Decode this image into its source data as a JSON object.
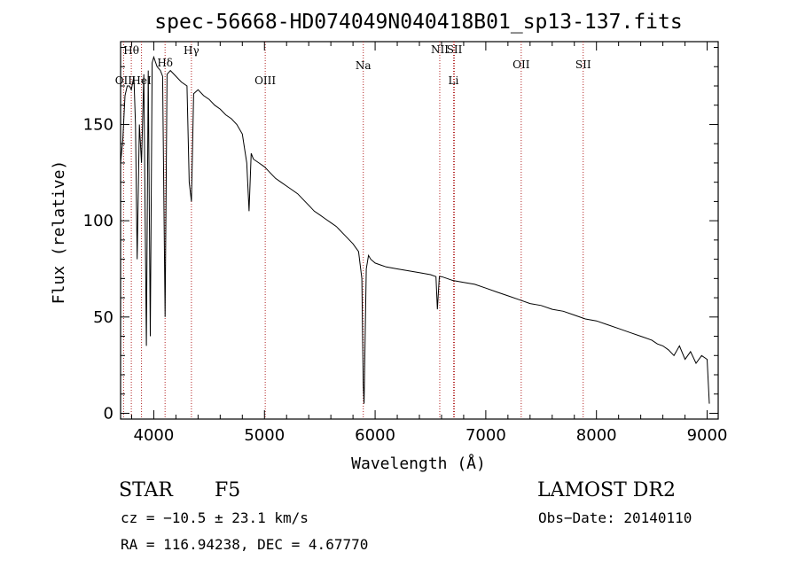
{
  "chart_data": {
    "type": "line",
    "title": "spec-56668-HD074049N040418B01_sp13-137.fits",
    "xlabel": "Wavelength (Å)",
    "ylabel": "Flux (relative)",
    "xlim": [
      3700,
      9100
    ],
    "ylim": [
      -3,
      193
    ],
    "xticks": [
      "4000",
      "5000",
      "6000",
      "7000",
      "8000",
      "9000"
    ],
    "yticks": [
      "0",
      "50",
      "100",
      "150"
    ],
    "grid": false,
    "line_markers": [
      {
        "label": "Hθ",
        "x": 3797
      },
      {
        "label": "OII",
        "x": 3727
      },
      {
        "label": "HeI",
        "x": 3889
      },
      {
        "label": "Hδ",
        "x": 4102
      },
      {
        "label": "Hγ",
        "x": 4340
      },
      {
        "label": "OIII",
        "x": 5007
      },
      {
        "label": "Na",
        "x": 5893
      },
      {
        "label": "NII",
        "x": 6584
      },
      {
        "label": "SII",
        "x": 6717
      },
      {
        "label": "Li",
        "x": 6708
      },
      {
        "label": "OII",
        "x": 7320
      },
      {
        "label": "SII",
        "x": 7880
      }
    ],
    "series": [
      {
        "x": [
          3700,
          3720,
          3740,
          3760,
          3780,
          3797,
          3820,
          3835,
          3850,
          3870,
          3889,
          3910,
          3933,
          3950,
          3968,
          3985,
          4000,
          4030,
          4060,
          4080,
          4102,
          4120,
          4150,
          4200,
          4250,
          4300,
          4320,
          4340,
          4360,
          4400,
          4450,
          4500,
          4550,
          4600,
          4650,
          4700,
          4750,
          4800,
          4840,
          4861,
          4880,
          4900,
          4950,
          5000,
          5050,
          5100,
          5150,
          5200,
          5250,
          5300,
          5350,
          5400,
          5450,
          5500,
          5550,
          5600,
          5650,
          5700,
          5750,
          5800,
          5850,
          5880,
          5893,
          5900,
          5920,
          5940,
          5960,
          5980,
          6000,
          6050,
          6100,
          6200,
          6300,
          6400,
          6500,
          6550,
          6563,
          6580,
          6600,
          6650,
          6700,
          6800,
          6900,
          7000,
          7100,
          7200,
          7300,
          7400,
          7500,
          7600,
          7700,
          7800,
          7900,
          8000,
          8100,
          8200,
          8300,
          8400,
          8500,
          8550,
          8600,
          8650,
          8700,
          8750,
          8800,
          8850,
          8900,
          8950,
          9000,
          9020
        ],
        "y": [
          130,
          142,
          165,
          170,
          170,
          168,
          175,
          150,
          80,
          150,
          130,
          176,
          35,
          178,
          40,
          182,
          185,
          180,
          178,
          175,
          50,
          176,
          178,
          175,
          172,
          170,
          120,
          110,
          166,
          168,
          165,
          163,
          160,
          158,
          155,
          153,
          150,
          145,
          130,
          105,
          135,
          132,
          130,
          128,
          125,
          122,
          120,
          118,
          116,
          114,
          111,
          108,
          105,
          103,
          101,
          99,
          97,
          94,
          91,
          88,
          84,
          70,
          15,
          5,
          75,
          82,
          80,
          79,
          78,
          77,
          76,
          75,
          74,
          73,
          72,
          71,
          54,
          71,
          71,
          70,
          69,
          68,
          67,
          65,
          63,
          61,
          59,
          57,
          56,
          54,
          53,
          51,
          49,
          48,
          46,
          44,
          42,
          40,
          38,
          36,
          35,
          33,
          30,
          35,
          28,
          32,
          26,
          30,
          28,
          5
        ]
      }
    ]
  },
  "footer": {
    "class_label": "STAR",
    "subclass": "F5",
    "survey": "LAMOST DR2",
    "cz": "cz = −10.5 ± 23.1 km/s",
    "obs_date": "Obs−Date: 20140110",
    "coords": "RA = 116.94238, DEC =   4.67770"
  }
}
